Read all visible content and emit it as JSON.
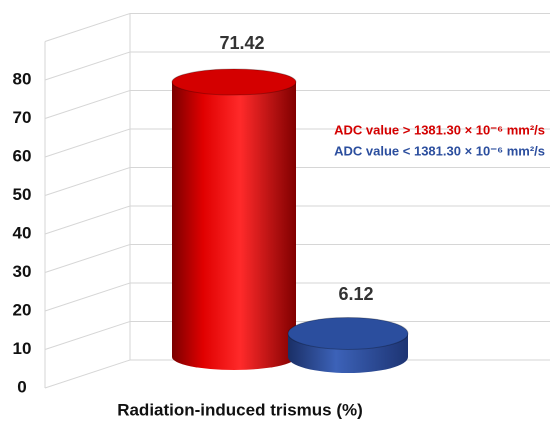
{
  "chart_data": {
    "type": "bar3d",
    "xlabel": "Radiation-induced trismus (%)",
    "series": [
      {
        "name": "ADC value > 1381.30 × 10⁻⁶ mm²/s",
        "color": "#d40000",
        "values": [
          71.42
        ]
      },
      {
        "name": "ADC value < 1381.30 × 10⁻⁶ mm²/s",
        "color": "#2b4e9e",
        "values": [
          6.12
        ]
      }
    ],
    "ylim": [
      0,
      90
    ],
    "yticks": [
      0,
      10,
      20,
      30,
      40,
      50,
      60,
      70,
      80
    ],
    "grid": true,
    "legend": "right"
  }
}
